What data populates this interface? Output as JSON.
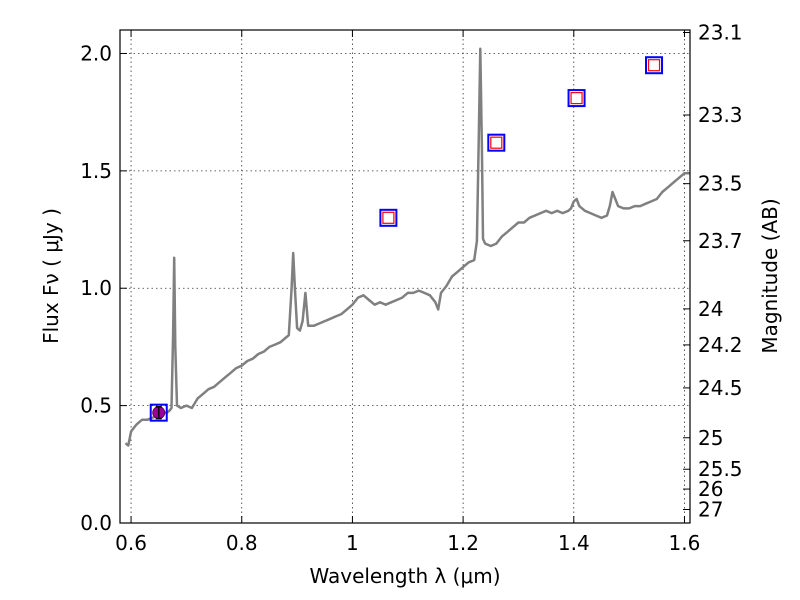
{
  "chart_data": {
    "type": "line",
    "xlabel": "Wavelength  λ (μm)",
    "ylabel": "Flux  Fν  ( μJy )",
    "y2label": "Magnitude (AB)",
    "xlim": [
      0.58,
      1.61
    ],
    "ylim": [
      0.0,
      2.1
    ],
    "grid": true,
    "x_ticks": [
      0.6,
      0.8,
      1.0,
      1.2,
      1.4,
      1.6
    ],
    "x_tick_labels": [
      "0.6",
      "0.8",
      "1",
      "1.2",
      "1.4",
      "1.6"
    ],
    "y_ticks": [
      0.0,
      0.5,
      1.0,
      1.5,
      2.0
    ],
    "y_tick_labels": [
      "0.0",
      "0.5",
      "1.0",
      "1.5",
      "2.0"
    ],
    "y2_ticks": [
      23.1,
      23.3,
      23.5,
      23.7,
      24,
      24.2,
      24.5,
      25,
      25.5,
      26,
      27
    ],
    "y2_tick_labels": [
      "23.1",
      "23.3",
      "23.5",
      "23.7",
      "24",
      "24.2",
      "24.5",
      "25",
      "25.5",
      "26",
      "27"
    ],
    "colors": {
      "spectrum": "#808080",
      "square_outer": "#0000ff",
      "square_inner": "#ff0000",
      "measured_fill": "#9b009b",
      "grid": "#000000"
    },
    "series": [
      {
        "type": "line",
        "points": [
          [
            0.59,
            0.34
          ],
          [
            0.595,
            0.33
          ],
          [
            0.6,
            0.39
          ],
          [
            0.61,
            0.42
          ],
          [
            0.62,
            0.44
          ],
          [
            0.63,
            0.44
          ],
          [
            0.64,
            0.45
          ],
          [
            0.65,
            0.46
          ],
          [
            0.66,
            0.47
          ],
          [
            0.665,
            0.47
          ],
          [
            0.67,
            0.48
          ],
          [
            0.673,
            0.49
          ],
          [
            0.676,
            0.8
          ],
          [
            0.678,
            1.13
          ],
          [
            0.68,
            0.75
          ],
          [
            0.683,
            0.5
          ],
          [
            0.69,
            0.49
          ],
          [
            0.7,
            0.5
          ],
          [
            0.71,
            0.49
          ],
          [
            0.72,
            0.53
          ],
          [
            0.73,
            0.55
          ],
          [
            0.74,
            0.57
          ],
          [
            0.75,
            0.58
          ],
          [
            0.76,
            0.6
          ],
          [
            0.77,
            0.62
          ],
          [
            0.78,
            0.64
          ],
          [
            0.79,
            0.66
          ],
          [
            0.8,
            0.67
          ],
          [
            0.81,
            0.69
          ],
          [
            0.82,
            0.7
          ],
          [
            0.83,
            0.72
          ],
          [
            0.84,
            0.73
          ],
          [
            0.85,
            0.75
          ],
          [
            0.86,
            0.76
          ],
          [
            0.87,
            0.77
          ],
          [
            0.88,
            0.79
          ],
          [
            0.885,
            0.8
          ],
          [
            0.89,
            1.0
          ],
          [
            0.893,
            1.15
          ],
          [
            0.896,
            1.0
          ],
          [
            0.9,
            0.83
          ],
          [
            0.905,
            0.82
          ],
          [
            0.91,
            0.86
          ],
          [
            0.915,
            0.98
          ],
          [
            0.92,
            0.84
          ],
          [
            0.93,
            0.84
          ],
          [
            0.94,
            0.85
          ],
          [
            0.95,
            0.86
          ],
          [
            0.96,
            0.87
          ],
          [
            0.97,
            0.88
          ],
          [
            0.98,
            0.89
          ],
          [
            0.99,
            0.91
          ],
          [
            1.0,
            0.93
          ],
          [
            1.01,
            0.96
          ],
          [
            1.02,
            0.97
          ],
          [
            1.03,
            0.95
          ],
          [
            1.04,
            0.93
          ],
          [
            1.05,
            0.94
          ],
          [
            1.06,
            0.93
          ],
          [
            1.07,
            0.94
          ],
          [
            1.08,
            0.95
          ],
          [
            1.09,
            0.96
          ],
          [
            1.1,
            0.98
          ],
          [
            1.11,
            0.98
          ],
          [
            1.12,
            0.99
          ],
          [
            1.13,
            0.98
          ],
          [
            1.14,
            0.97
          ],
          [
            1.15,
            0.94
          ],
          [
            1.155,
            0.91
          ],
          [
            1.16,
            0.98
          ],
          [
            1.17,
            1.01
          ],
          [
            1.18,
            1.05
          ],
          [
            1.19,
            1.07
          ],
          [
            1.2,
            1.09
          ],
          [
            1.21,
            1.11
          ],
          [
            1.22,
            1.12
          ],
          [
            1.225,
            1.2
          ],
          [
            1.228,
            1.6
          ],
          [
            1.231,
            2.02
          ],
          [
            1.234,
            1.6
          ],
          [
            1.236,
            1.21
          ],
          [
            1.24,
            1.19
          ],
          [
            1.25,
            1.18
          ],
          [
            1.26,
            1.19
          ],
          [
            1.27,
            1.22
          ],
          [
            1.28,
            1.24
          ],
          [
            1.29,
            1.26
          ],
          [
            1.3,
            1.28
          ],
          [
            1.31,
            1.28
          ],
          [
            1.32,
            1.3
          ],
          [
            1.33,
            1.31
          ],
          [
            1.34,
            1.32
          ],
          [
            1.35,
            1.33
          ],
          [
            1.36,
            1.32
          ],
          [
            1.37,
            1.33
          ],
          [
            1.38,
            1.32
          ],
          [
            1.39,
            1.33
          ],
          [
            1.395,
            1.34
          ],
          [
            1.4,
            1.37
          ],
          [
            1.405,
            1.38
          ],
          [
            1.41,
            1.35
          ],
          [
            1.42,
            1.33
          ],
          [
            1.43,
            1.32
          ],
          [
            1.44,
            1.31
          ],
          [
            1.45,
            1.3
          ],
          [
            1.46,
            1.31
          ],
          [
            1.465,
            1.35
          ],
          [
            1.47,
            1.41
          ],
          [
            1.475,
            1.38
          ],
          [
            1.48,
            1.35
          ],
          [
            1.49,
            1.34
          ],
          [
            1.5,
            1.34
          ],
          [
            1.51,
            1.35
          ],
          [
            1.52,
            1.35
          ],
          [
            1.53,
            1.36
          ],
          [
            1.54,
            1.37
          ],
          [
            1.55,
            1.38
          ],
          [
            1.56,
            1.41
          ],
          [
            1.57,
            1.43
          ],
          [
            1.58,
            1.45
          ],
          [
            1.59,
            1.47
          ],
          [
            1.6,
            1.49
          ],
          [
            1.61,
            1.49
          ]
        ]
      },
      {
        "type": "scatter",
        "marker": "square",
        "points": [
          [
            1.065,
            1.3
          ],
          [
            1.26,
            1.62
          ],
          [
            1.405,
            1.81
          ],
          [
            1.545,
            1.95
          ]
        ]
      },
      {
        "type": "scatter",
        "marker": "square-with-errorbar",
        "points": [
          [
            0.65,
            0.47
          ]
        ],
        "yerr": [
          0.025
        ]
      }
    ]
  }
}
